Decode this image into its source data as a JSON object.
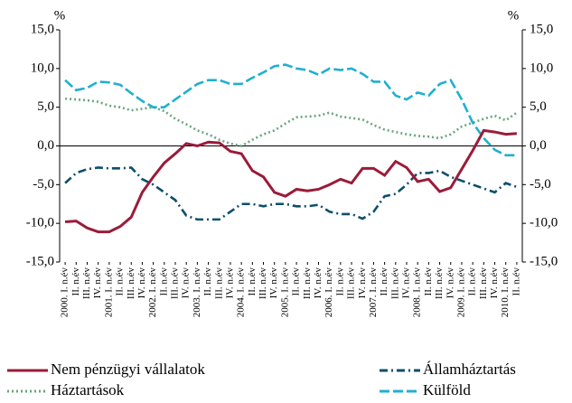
{
  "chart_data": {
    "type": "line",
    "y_label": "%",
    "y2_label": "%",
    "categories": [
      "2000. I. n.év",
      "II. n.év",
      "III. n.év",
      "IV. n.év",
      "2001. I. n.év",
      "II. n.év",
      "III. n.év",
      "IV. n.év",
      "2002. I. n.év",
      "II. n.év",
      "III. n.év",
      "IV. n.év",
      "2003. I. n.év",
      "II. n.év",
      "III. n.év",
      "IV. n.év",
      "2004. I. n.év",
      "II. n.év",
      "III. n.év",
      "IV. n.év",
      "2005. I. n.év",
      "II. n.év",
      "III. n.év",
      "IV. n.év",
      "2006. I. n.év",
      "II. n.év",
      "III. n.év",
      "IV. n.év",
      "2007. I. n.év",
      "II. n.év",
      "III. n.év",
      "IV. n.év",
      "2008. I. n.év",
      "II. n.év",
      "III. n.év",
      "IV. n.év",
      "2009. I. n.év",
      "II. n.év",
      "III. n.év",
      "IV. n.év",
      "2010. I. n.év",
      "II. n.év"
    ],
    "series": [
      {
        "name": "Nem pénzügyi vállalatok",
        "color": "#9b1b3a",
        "line_style": "solid",
        "values": [
          -9.8,
          -9.7,
          -10.6,
          -11.1,
          -11.1,
          -10.4,
          -9.2,
          -6.0,
          -4.0,
          -2.2,
          -1.0,
          0.3,
          0.0,
          0.5,
          0.4,
          -0.7,
          -1.0,
          -3.2,
          -4.0,
          -6.0,
          -6.5,
          -5.6,
          -5.8,
          -5.6,
          -5.0,
          -4.3,
          -4.8,
          -2.9,
          -2.9,
          -3.8,
          -2.0,
          -2.8,
          -4.6,
          -4.3,
          -5.9,
          -5.4,
          -3.0,
          -0.6,
          2.0,
          1.8,
          1.5,
          1.6
        ]
      },
      {
        "name": "Államháztartás",
        "color": "#0d4f6b",
        "line_style": "dashdot",
        "values": [
          -4.8,
          -3.5,
          -3.0,
          -2.8,
          -2.9,
          -2.9,
          -2.8,
          -4.3,
          -5.0,
          -6.0,
          -7.0,
          -9.0,
          -9.5,
          -9.5,
          -9.5,
          -8.5,
          -7.5,
          -7.5,
          -7.8,
          -7.5,
          -7.5,
          -7.8,
          -7.8,
          -7.6,
          -8.5,
          -8.8,
          -8.8,
          -9.4,
          -8.5,
          -6.5,
          -6.2,
          -5.0,
          -3.5,
          -3.5,
          -3.2,
          -4.0,
          -4.5,
          -5.0,
          -5.5,
          -6.0,
          -4.8,
          -5.3
        ]
      },
      {
        "name": "Háztartások",
        "color": "#6aa57e",
        "line_style": "dotted",
        "values": [
          6.1,
          6.0,
          5.9,
          5.7,
          5.2,
          5.0,
          4.6,
          4.8,
          5.0,
          4.5,
          3.5,
          2.8,
          2.0,
          1.5,
          0.8,
          0.3,
          0.0,
          0.8,
          1.5,
          2.0,
          2.9,
          3.7,
          3.8,
          3.9,
          4.3,
          3.8,
          3.6,
          3.4,
          2.7,
          2.1,
          1.8,
          1.5,
          1.3,
          1.2,
          1.0,
          1.5,
          2.5,
          3.0,
          3.5,
          3.9,
          3.3,
          4.3
        ]
      },
      {
        "name": "Külföld",
        "color": "#1fb0d0",
        "line_style": "dashed",
        "values": [
          8.5,
          7.2,
          7.5,
          8.3,
          8.2,
          7.9,
          6.8,
          5.8,
          5.0,
          5.0,
          6.0,
          7.0,
          8.0,
          8.5,
          8.5,
          8.0,
          8.0,
          8.8,
          9.5,
          10.3,
          10.5,
          10.0,
          9.8,
          9.2,
          10.0,
          9.8,
          10.0,
          9.3,
          8.3,
          8.3,
          6.5,
          6.0,
          6.9,
          6.5,
          8.0,
          8.5,
          6.0,
          3.0,
          1.0,
          -0.5,
          -1.2,
          -1.2
        ]
      }
    ],
    "ylim": [
      -15,
      15
    ],
    "yticks": [
      {
        "value": -15,
        "label": "-15,0"
      },
      {
        "value": -10,
        "label": "-10,0"
      },
      {
        "value": -5,
        "label": "-5,0"
      },
      {
        "value": 0,
        "label": "0,0"
      },
      {
        "value": 5,
        "label": "5,0"
      },
      {
        "value": 10,
        "label": "10,0"
      },
      {
        "value": 15,
        "label": "15,0"
      }
    ],
    "y2lim": [
      -15,
      15
    ],
    "y2ticks": [
      {
        "value": -15,
        "label": "-15,0"
      },
      {
        "value": -10,
        "label": "-10,0"
      },
      {
        "value": -5,
        "label": "-5,0"
      },
      {
        "value": 0,
        "label": "0,0"
      },
      {
        "value": 5,
        "label": "5,0"
      },
      {
        "value": 10,
        "label": "10,0"
      },
      {
        "value": 15,
        "label": "15,0"
      }
    ],
    "legend": "bottom"
  }
}
